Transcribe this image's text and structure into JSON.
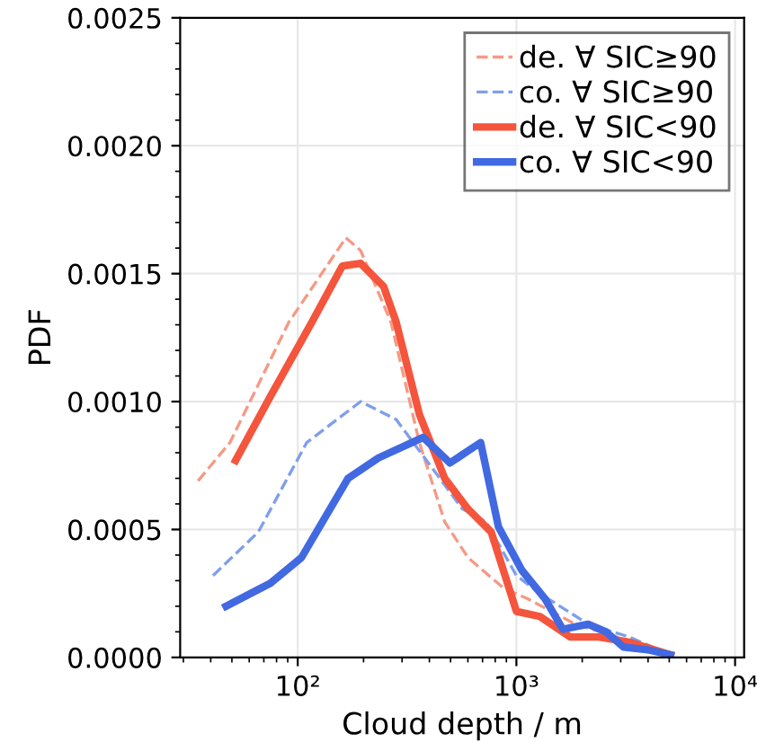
{
  "chart_data": {
    "type": "line",
    "xlabel": "Cloud depth / m",
    "ylabel": "PDF",
    "log": "x",
    "grid": true,
    "legend": "top right",
    "xlim": [
      29,
      11000
    ],
    "ylim": [
      0,
      0.0025
    ],
    "xticks": [
      {
        "value": 100,
        "label": "10²"
      },
      {
        "value": 1000,
        "label": "10³"
      },
      {
        "value": 10000,
        "label": "10⁴"
      }
    ],
    "yticks": [
      {
        "value": 0,
        "label": "0.0000"
      },
      {
        "value": 0.0005,
        "label": "0.0005"
      },
      {
        "value": 0.001,
        "label": "0.0010"
      },
      {
        "value": 0.0015,
        "label": "0.0015"
      },
      {
        "value": 0.002,
        "label": "0.0020"
      },
      {
        "value": 0.0025,
        "label": "0.0025"
      }
    ],
    "series": [
      {
        "name": "de. ∀ SIC≥90",
        "color": "#f59a85",
        "line_style": "dashed",
        "x": [
          35,
          49,
          91,
          166,
          194,
          267,
          360,
          470,
          601,
          877,
          1120,
          1860,
          2880,
          4790
        ],
        "values": [
          0.00069,
          0.00084,
          0.00131,
          0.00164,
          0.00159,
          0.00131,
          0.00084,
          0.00053,
          0.00039,
          0.00027,
          0.00023,
          0.00013,
          8e-05,
          1e-05
        ]
      },
      {
        "name": "co. ∀ SIC≥90",
        "color": "#7f9fea",
        "line_style": "dashed",
        "x": [
          41,
          66,
          110,
          194,
          282,
          412,
          567,
          726,
          1000,
          1280,
          2130,
          3280,
          5070
        ],
        "values": [
          0.00032,
          0.00049,
          0.00084,
          0.001,
          0.00093,
          0.00074,
          0.00058,
          0.00053,
          0.00032,
          0.00025,
          0.00013,
          8e-05,
          1e-05
        ]
      },
      {
        "name": "de. ∀ SIC<90",
        "color": "#f4553c",
        "line_style": "solid",
        "x": [
          52,
          75,
          116,
          160,
          194,
          247,
          282,
          360,
          470,
          601,
          767,
          1000,
          1280,
          1760,
          2380,
          3280,
          5070
        ],
        "values": [
          0.00077,
          0.00102,
          0.00131,
          0.00153,
          0.00154,
          0.00145,
          0.00131,
          0.00095,
          0.0007,
          0.00058,
          0.00049,
          0.00018,
          0.00016,
          8e-05,
          8e-05,
          6e-05,
          1e-05
        ]
      },
      {
        "name": "co. ∀ SIC<90",
        "color": "#4169e1",
        "line_style": "solid",
        "x": [
          47,
          75,
          104,
          170,
          234,
          375,
          497,
          686,
          828,
          1060,
          1350,
          1630,
          2130,
          2570,
          3090,
          3980,
          5070
        ],
        "values": [
          0.0002,
          0.00029,
          0.00039,
          0.0007,
          0.00078,
          0.00086,
          0.00076,
          0.00084,
          0.00051,
          0.00034,
          0.00023,
          0.00011,
          0.00013,
          0.0001,
          4e-05,
          3e-05,
          1e-05
        ]
      }
    ]
  }
}
